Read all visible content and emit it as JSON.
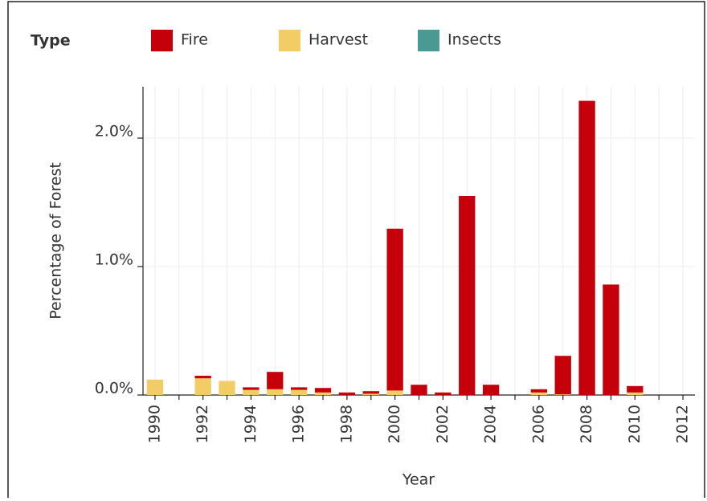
{
  "chart_data": {
    "type": "bar",
    "stacked": true,
    "legend_title": "Type",
    "xlabel": "Year",
    "ylabel": "Percentage of Forest",
    "categories": [
      "1990",
      null,
      "1992",
      null,
      "1994",
      null,
      "1996",
      null,
      "1998",
      null,
      "2000",
      null,
      "2002",
      null,
      "2004",
      null,
      "2006",
      null,
      "2008",
      null,
      "2010",
      null,
      "2012"
    ],
    "series": [
      {
        "name": "Harvest",
        "color": "#f2cd65",
        "values": [
          0.12,
          0,
          0.13,
          0.11,
          0.04,
          0.045,
          0.04,
          0.02,
          0,
          0.01,
          0.035,
          0,
          0,
          0,
          0,
          0,
          0.02,
          0.005,
          0,
          0,
          0.02,
          0,
          0
        ]
      },
      {
        "name": "Fire",
        "color": "#c5000b",
        "values": [
          0,
          0,
          0.02,
          0,
          0.02,
          0.135,
          0.02,
          0.035,
          0.02,
          0.02,
          1.26,
          0.08,
          0.02,
          1.55,
          0.08,
          0,
          0.025,
          0.3,
          2.29,
          0.86,
          0.05,
          0,
          0
        ]
      },
      {
        "name": "Insects",
        "color": "#4a9a93",
        "values": [
          0,
          0,
          0,
          0,
          0,
          0,
          0,
          0,
          0,
          0,
          0,
          0,
          0,
          0,
          0,
          0,
          0,
          0,
          0,
          0,
          0,
          0,
          0
        ]
      }
    ],
    "legend_order": [
      1,
      0,
      2
    ],
    "ylim": [
      0,
      2.4
    ],
    "yticks": [
      {
        "value": 0,
        "label": "0.0%"
      },
      {
        "value": 1,
        "label": "1.0%"
      },
      {
        "value": 2,
        "label": "2.0%"
      }
    ],
    "grid": true
  }
}
